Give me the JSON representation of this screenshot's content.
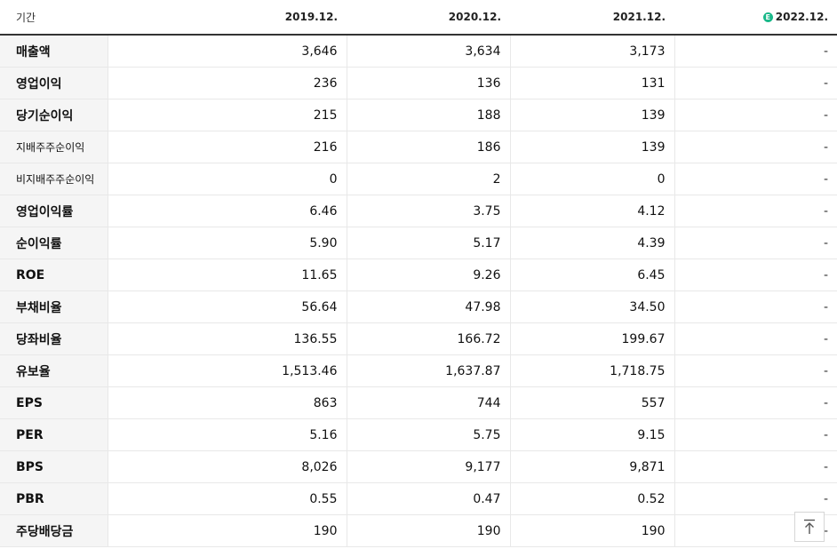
{
  "table": {
    "header": {
      "period_label": "기간",
      "columns": [
        "2019.12.",
        "2020.12.",
        "2021.12.",
        "2022.12."
      ],
      "estimate_badge": "E"
    },
    "rows": [
      {
        "label": "매출액",
        "values": [
          "3,646",
          "3,634",
          "3,173",
          "-"
        ]
      },
      {
        "label": "영업이익",
        "values": [
          "236",
          "136",
          "131",
          "-"
        ]
      },
      {
        "label": "당기순이익",
        "values": [
          "215",
          "188",
          "139",
          "-"
        ]
      },
      {
        "label": "지배주주순이익",
        "values": [
          "216",
          "186",
          "139",
          "-"
        ]
      },
      {
        "label": "비지배주주순이익",
        "values": [
          "0",
          "2",
          "0",
          "-"
        ]
      },
      {
        "label": "영업이익률",
        "values": [
          "6.46",
          "3.75",
          "4.12",
          "-"
        ]
      },
      {
        "label": "순이익률",
        "values": [
          "5.90",
          "5.17",
          "4.39",
          "-"
        ]
      },
      {
        "label": "ROE",
        "values": [
          "11.65",
          "9.26",
          "6.45",
          "-"
        ]
      },
      {
        "label": "부채비율",
        "values": [
          "56.64",
          "47.98",
          "34.50",
          "-"
        ]
      },
      {
        "label": "당좌비율",
        "values": [
          "136.55",
          "166.72",
          "199.67",
          "-"
        ]
      },
      {
        "label": "유보율",
        "values": [
          "1,513.46",
          "1,637.87",
          "1,718.75",
          "-"
        ]
      },
      {
        "label": "EPS",
        "values": [
          "863",
          "744",
          "557",
          "-"
        ]
      },
      {
        "label": "PER",
        "values": [
          "5.16",
          "5.75",
          "9.15",
          "-"
        ]
      },
      {
        "label": "BPS",
        "values": [
          "8,026",
          "9,177",
          "9,871",
          "-"
        ]
      },
      {
        "label": "PBR",
        "values": [
          "0.55",
          "0.47",
          "0.52",
          "-"
        ]
      },
      {
        "label": "주당배당금",
        "values": [
          "190",
          "190",
          "190",
          "-"
        ]
      }
    ]
  },
  "scroll_top": {
    "icon": "arrow-up-to-top-icon"
  }
}
